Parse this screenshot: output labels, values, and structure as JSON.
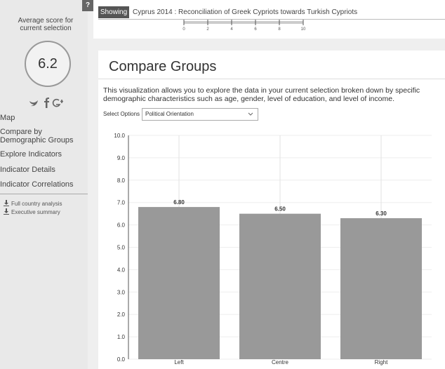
{
  "sidebar": {
    "help": "?",
    "score_label": "Average score for current selection",
    "score": 6.2,
    "nav": [
      "Map",
      "Compare by Demographic Groups",
      "Explore Indicators",
      "Indicator Details",
      "Indicator Correlations"
    ],
    "downloads": [
      "Full country analysis",
      "Executive summary"
    ]
  },
  "header": {
    "showing": "Showing",
    "selection": "Cyprus 2014 : Reconciliation of Greek Cypriots towards Turkish Cypriots",
    "scale_ticks": [
      0,
      2,
      4,
      6,
      8,
      10
    ],
    "scale_lim": [
      0,
      10
    ]
  },
  "panel": {
    "title": "Compare Groups",
    "description": "This visualization allows you to explore the data in your current selection broken down by specific demographic characteristics such as age, gender, level of education, and level of income.",
    "select_label": "Select Options",
    "select_value": "Political Orientation"
  },
  "chart_data": {
    "type": "bar",
    "categories": [
      "Left",
      "Centre",
      "Right"
    ],
    "values": [
      6.8,
      6.5,
      6.3
    ],
    "value_labels": [
      "6.80",
      "6.50",
      "6.30"
    ],
    "color": "#999999",
    "ylim": [
      0,
      10
    ],
    "yticks": [
      {
        "value": 0,
        "label": "0.0"
      },
      {
        "value": 1,
        "label": "1.0"
      },
      {
        "value": 2,
        "label": "2.0"
      },
      {
        "value": 3,
        "label": "3.0"
      },
      {
        "value": 4,
        "label": "4.0"
      },
      {
        "value": 5,
        "label": "5.0"
      },
      {
        "value": 6,
        "label": "6.0"
      },
      {
        "value": 7,
        "label": "7.0"
      },
      {
        "value": 8,
        "label": "8.0"
      },
      {
        "value": 9,
        "label": "9.0"
      },
      {
        "value": 10,
        "label": "10.0"
      }
    ],
    "grid": true
  }
}
